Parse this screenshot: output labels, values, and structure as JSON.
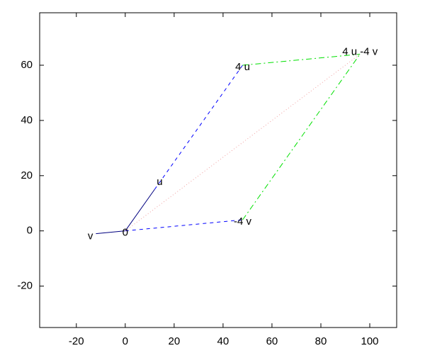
{
  "chart_data": {
    "type": "vector",
    "xlim": [
      -35,
      111
    ],
    "ylim": [
      -35,
      79
    ],
    "xticks": [
      -20,
      0,
      20,
      40,
      60,
      80,
      100
    ],
    "yticks": [
      -20,
      0,
      20,
      40,
      60
    ],
    "segments": [
      {
        "color": "#000080",
        "style": "solid",
        "x": [
          0,
          12
        ],
        "y": [
          0,
          15
        ]
      },
      {
        "color": "#000080",
        "style": "solid",
        "x": [
          0,
          -12
        ],
        "y": [
          0,
          -1
        ]
      },
      {
        "color": "#0000ff",
        "style": "dashed",
        "x": [
          12,
          48
        ],
        "y": [
          15,
          60
        ]
      },
      {
        "color": "#0000ff",
        "style": "dashed",
        "x": [
          0,
          48
        ],
        "y": [
          0,
          4
        ]
      },
      {
        "color": "#00e000",
        "style": "dashdot",
        "x": [
          48,
          96
        ],
        "y": [
          60,
          64
        ]
      },
      {
        "color": "#00e000",
        "style": "dashdot",
        "x": [
          48,
          96
        ],
        "y": [
          4,
          64
        ]
      },
      {
        "color": "#f0a0a0",
        "style": "dotted",
        "x": [
          0,
          96
        ],
        "y": [
          0,
          64
        ]
      }
    ],
    "labels": [
      {
        "text": "u",
        "x": 12,
        "y": 15,
        "anchor": "left"
      },
      {
        "text": "v",
        "x": -12,
        "y": -1,
        "anchor": "right"
      },
      {
        "text": "0",
        "x": 0,
        "y": 0,
        "anchor": "center"
      },
      {
        "text": "4 u",
        "x": 48,
        "y": 60,
        "anchor": "center"
      },
      {
        "text": "-4 v",
        "x": 48,
        "y": 4,
        "anchor": "center"
      },
      {
        "text": "4 u -4 v",
        "x": 96,
        "y": 64,
        "anchor": "center"
      }
    ]
  }
}
